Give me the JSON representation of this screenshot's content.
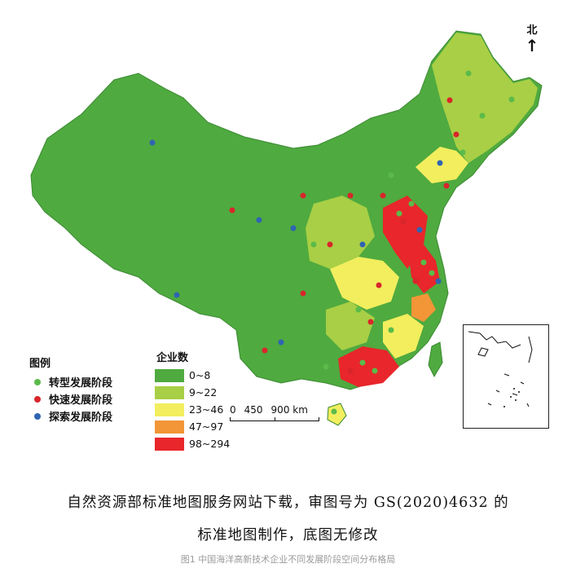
{
  "compass": {
    "label": "北"
  },
  "legend_points": {
    "title": "图例",
    "items": [
      {
        "label": "转型发展阶段",
        "color": "#5bbb4a"
      },
      {
        "label": "快速发展阶段",
        "color": "#d8262b"
      },
      {
        "label": "探索发展阶段",
        "color": "#2f64b3"
      }
    ]
  },
  "legend_counts": {
    "title": "企业数",
    "items": [
      {
        "label": "0~8",
        "color": "#4faa3f"
      },
      {
        "label": "9~22",
        "color": "#a8cf45"
      },
      {
        "label": "23~46",
        "color": "#f2ee5e"
      },
      {
        "label": "47~97",
        "color": "#f29637"
      },
      {
        "label": "98~294",
        "color": "#e8262b"
      }
    ]
  },
  "scale": {
    "labels": [
      "0",
      "450",
      "900 km"
    ]
  },
  "caption": {
    "line1": "自然资源部标准地图服务网站下载，审图号为 GS(2020)4632 的",
    "line2": "标准地图制作，底图无修改",
    "figure": "图1 中国海洋高新技术企业不同发展阶段空间分布格局"
  }
}
